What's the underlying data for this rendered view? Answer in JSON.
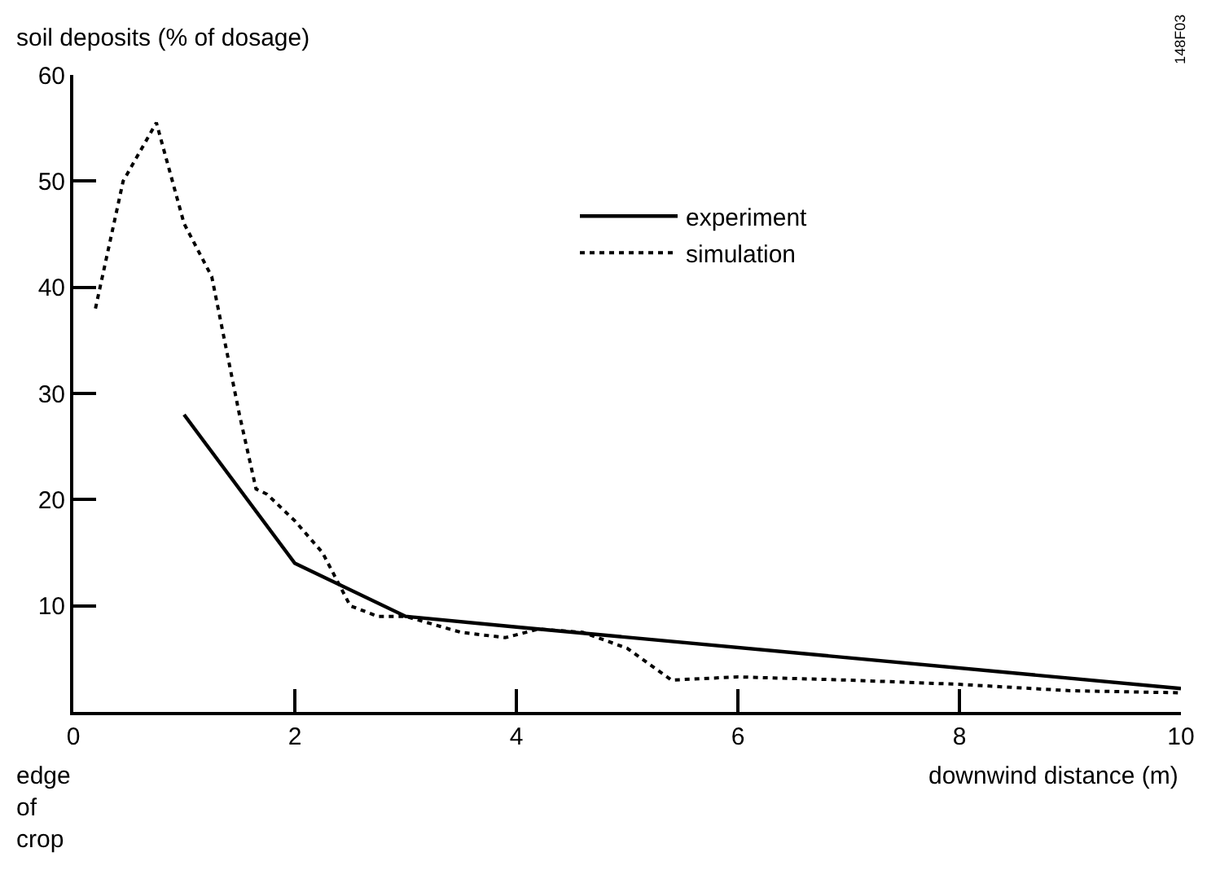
{
  "chart_data": {
    "type": "line",
    "ylabel": "soil deposits (% of dosage)",
    "xlabel": "downwind distance (m)",
    "annotations": [
      "148F03",
      "edge\nof\ncrop"
    ],
    "xlim": [
      0,
      10
    ],
    "xticks": [
      0,
      2,
      4,
      6,
      8,
      10
    ],
    "ylim": [
      0,
      60
    ],
    "yticks": [
      10,
      20,
      30,
      40,
      50,
      60
    ],
    "grid": false,
    "legend": "top right",
    "marker": "none",
    "series": [
      {
        "name": "experiment",
        "color": "#000000",
        "line_style": "solid",
        "x": [
          1,
          2,
          3,
          4,
          10
        ],
        "values": [
          28,
          14,
          9,
          8,
          2.2
        ]
      },
      {
        "name": "simulation",
        "color": "#000000",
        "line_style": "dotted",
        "x": [
          0.2,
          0.45,
          0.75,
          1,
          1.25,
          1.5,
          1.65,
          1.75,
          2,
          2.25,
          2.5,
          2.75,
          3,
          3.5,
          3.9,
          4.2,
          4.6,
          5,
          5.4,
          6,
          7,
          8,
          9,
          10
        ],
        "values": [
          38,
          50,
          55.5,
          46,
          41,
          28,
          21,
          20.5,
          18,
          15,
          10,
          9,
          9,
          7.5,
          7,
          7.8,
          7.5,
          6,
          3,
          3.3,
          3,
          2.6,
          2,
          1.8
        ]
      }
    ]
  }
}
